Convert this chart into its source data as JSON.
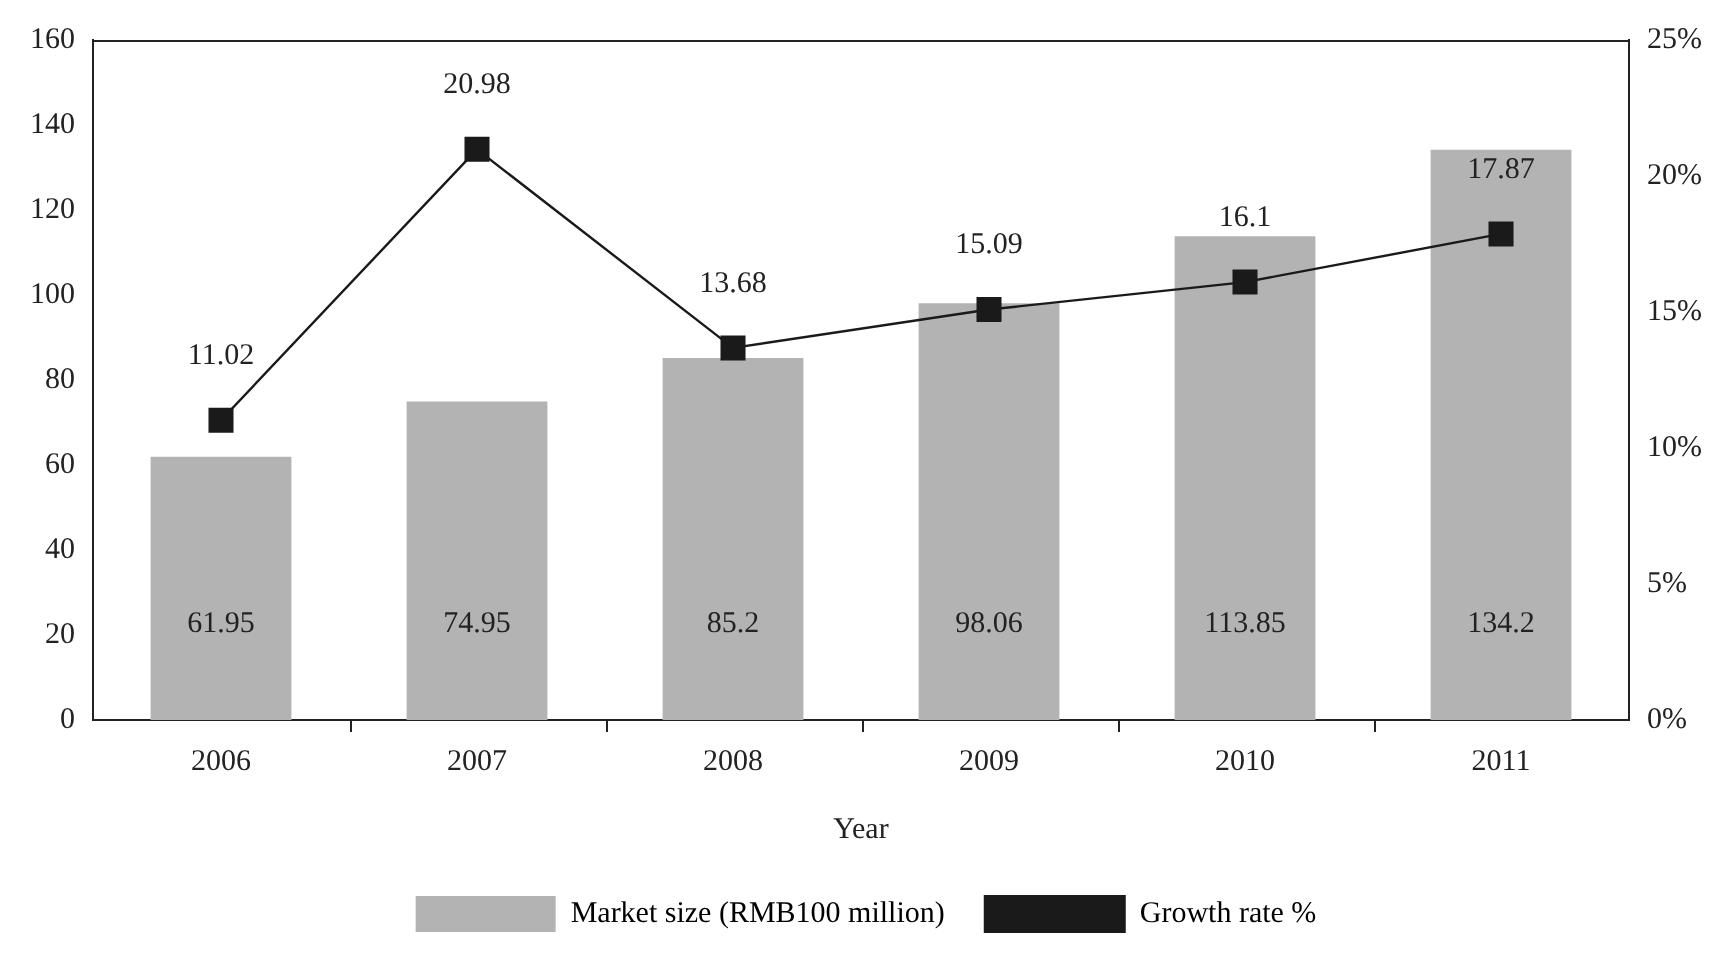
{
  "chart_data": {
    "type": "bar",
    "xlabel": "Year",
    "categories": [
      "2006",
      "2007",
      "2008",
      "2009",
      "2010",
      "2011"
    ],
    "series": [
      {
        "name": "Market size (RMB100 million)",
        "color": "#b3b3b3",
        "values": [
          61.95,
          74.95,
          85.2,
          98.06,
          113.85,
          134.2
        ]
      },
      {
        "name": "Growth rate %",
        "type": "line",
        "axis": "y2",
        "color": "#1a1a1a",
        "values": [
          11.02,
          20.98,
          13.68,
          15.09,
          16.1,
          17.87
        ]
      }
    ],
    "ylim": [
      0,
      160
    ],
    "yticks": [
      0,
      20,
      40,
      60,
      80,
      100,
      120,
      140,
      160
    ],
    "y2lim": [
      0,
      25
    ],
    "y2ticks": [
      {
        "value": 0,
        "label": "0%"
      },
      {
        "value": 5,
        "label": "5%"
      },
      {
        "value": 10,
        "label": "10%"
      },
      {
        "value": 15,
        "label": "15%"
      },
      {
        "value": 20,
        "label": "20%"
      },
      {
        "value": 25,
        "label": "25%"
      }
    ],
    "data_labels": true,
    "legend": "bottom",
    "marker": "square",
    "line_style": "solid",
    "grid": false
  }
}
